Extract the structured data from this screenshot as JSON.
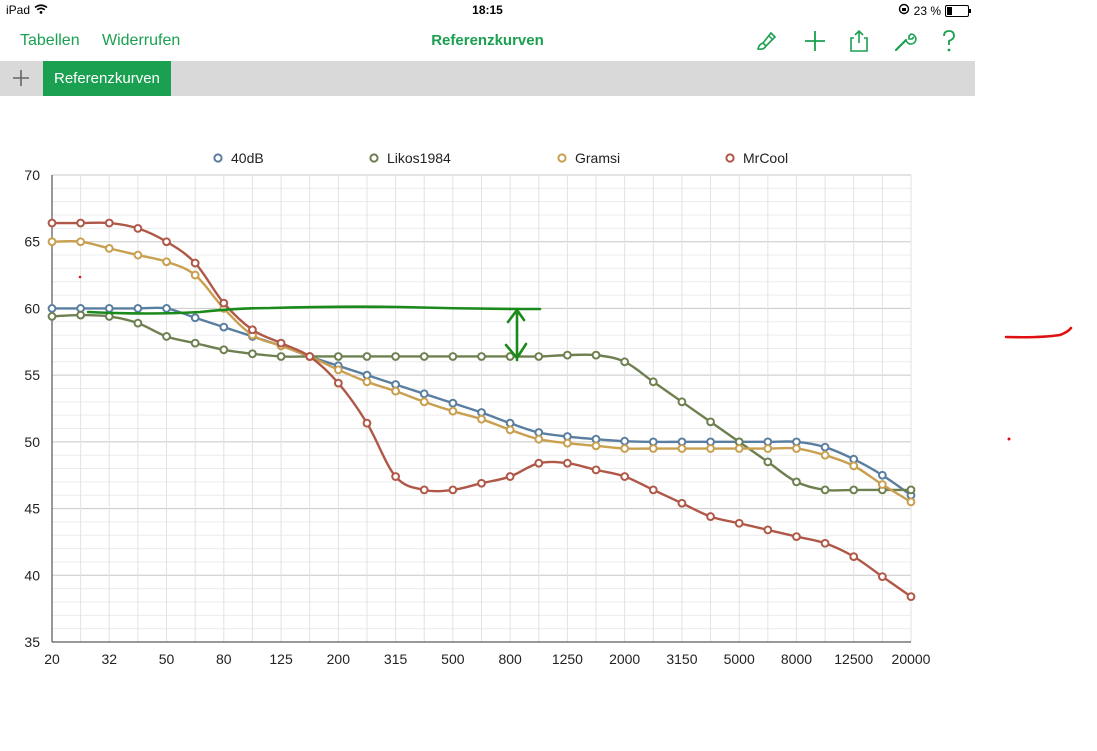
{
  "status": {
    "device": "iPad",
    "time": "18:15",
    "battery": "23 %"
  },
  "toolbar": {
    "tables_label": "Tabellen",
    "undo_label": "Widerrufen",
    "title": "Referenzkurven",
    "icons": [
      "paintbrush-icon",
      "plus-icon",
      "share-icon",
      "wrench-icon",
      "help-icon"
    ]
  },
  "tabs": {
    "active_label": "Referenzkurven"
  },
  "chart_data": {
    "type": "line",
    "categories": [
      "20",
      "25",
      "32",
      "40",
      "50",
      "63",
      "80",
      "100",
      "125",
      "160",
      "200",
      "250",
      "315",
      "400",
      "500",
      "630",
      "800",
      "1000",
      "1250",
      "1600",
      "2000",
      "2500",
      "3150",
      "4000",
      "5000",
      "6300",
      "8000",
      "10000",
      "12500",
      "16000",
      "20000"
    ],
    "tick_labels": [
      "20",
      "32",
      "50",
      "80",
      "125",
      "200",
      "315",
      "500",
      "800",
      "1250",
      "2000",
      "3150",
      "5000",
      "8000",
      "12500",
      "20000"
    ],
    "ylim": [
      35,
      70
    ],
    "yticks": [
      35,
      40,
      45,
      50,
      55,
      60,
      65,
      70
    ],
    "grid": true,
    "legend": "top",
    "series": [
      {
        "name": "40dB",
        "color": "#5a7ea0",
        "values": [
          60,
          60,
          60,
          60,
          60,
          59.3,
          58.6,
          57.9,
          57.2,
          56.4,
          55.7,
          55.0,
          54.3,
          53.6,
          52.9,
          52.2,
          51.4,
          50.7,
          50.4,
          50.2,
          50.05,
          50,
          50,
          50,
          50,
          50,
          50,
          49.6,
          48.7,
          47.5,
          46.0
        ]
      },
      {
        "name": "Likos1984",
        "color": "#6e8050",
        "values": [
          59.4,
          59.5,
          59.4,
          58.9,
          57.9,
          57.4,
          56.9,
          56.6,
          56.4,
          56.4,
          56.4,
          56.4,
          56.4,
          56.4,
          56.4,
          56.4,
          56.4,
          56.4,
          56.5,
          56.5,
          56.0,
          54.5,
          53.0,
          51.5,
          50.0,
          48.5,
          47.0,
          46.4,
          46.4,
          46.4,
          46.4
        ]
      },
      {
        "name": "Gramsi",
        "color": "#c8a050",
        "values": [
          65,
          65,
          64.5,
          64,
          63.5,
          62.5,
          60,
          58,
          57.2,
          56.4,
          55.4,
          54.5,
          53.8,
          53.0,
          52.3,
          51.7,
          50.9,
          50.2,
          49.9,
          49.7,
          49.5,
          49.5,
          49.5,
          49.5,
          49.5,
          49.5,
          49.5,
          49.0,
          48.2,
          46.8,
          45.5
        ]
      },
      {
        "name": "MrCool",
        "color": "#b05848",
        "values": [
          66.4,
          66.4,
          66.4,
          66,
          65,
          63.4,
          60.4,
          58.4,
          57.4,
          56.4,
          54.4,
          51.4,
          47.4,
          46.4,
          46.4,
          46.9,
          47.4,
          48.4,
          48.4,
          47.9,
          47.4,
          46.4,
          45.4,
          44.4,
          43.9,
          43.4,
          42.9,
          42.4,
          41.4,
          39.9,
          38.4
        ]
      }
    ]
  }
}
